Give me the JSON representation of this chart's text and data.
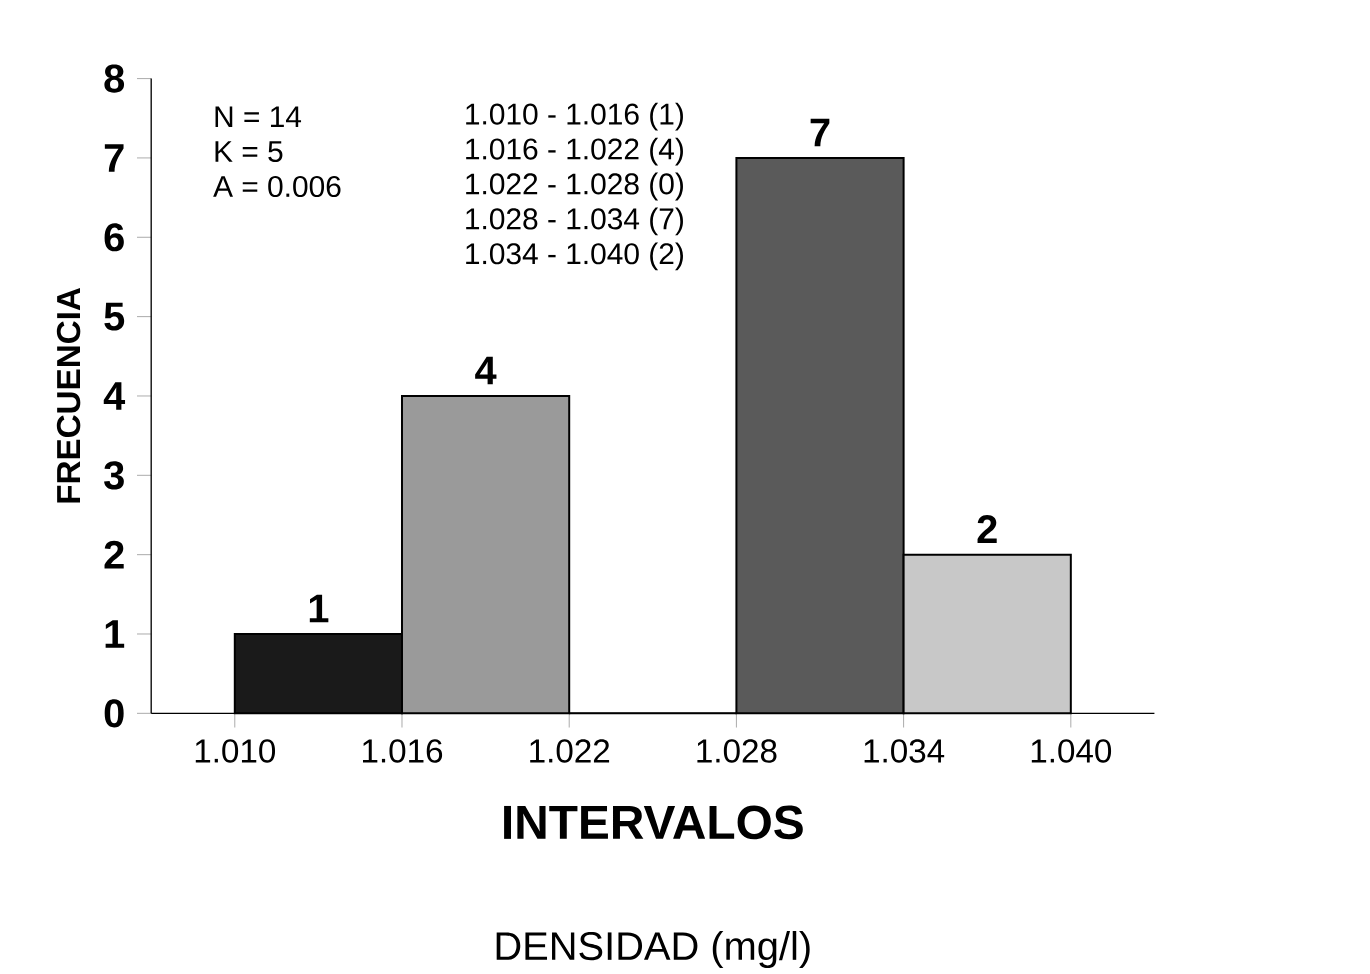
{
  "chart_data": {
    "type": "histogram",
    "bins": [
      1.01,
      1.016,
      1.022,
      1.028,
      1.034,
      1.04
    ],
    "values": [
      1,
      4,
      0,
      7,
      2
    ],
    "colors": [
      "#1a1a1a",
      "#9a9a9a",
      "#ffffff",
      "#5a5a5a",
      "#c8c8c8"
    ],
    "xticks": [
      {
        "value": 1.01,
        "label": "1.010"
      },
      {
        "value": 1.016,
        "label": "1.016"
      },
      {
        "value": 1.022,
        "label": "1.022"
      },
      {
        "value": 1.028,
        "label": "1.028"
      },
      {
        "value": 1.034,
        "label": "1.034"
      },
      {
        "value": 1.04,
        "label": "1.040"
      }
    ],
    "xlim": [
      1.007,
      1.043
    ],
    "ylim": [
      0,
      8
    ],
    "yticks": [
      0,
      1,
      2,
      3,
      4,
      5,
      6,
      7,
      8
    ],
    "xlabel": "INTERVALOS",
    "ylabel": "FRECUENCIA",
    "value_labels": [
      "1",
      "4",
      null,
      "7",
      "2"
    ],
    "grid": false,
    "annotations": [
      "N = 14",
      "K = 5",
      "A = 0.006",
      "1.010 - 1.016 (1)",
      "1.016 - 1.022 (4)",
      "1.022 - 1.028 (0)",
      "1.028 - 1.034 (7)",
      "1.034 - 1.040 (2)",
      "DENSIDAD (mg/l)"
    ]
  }
}
